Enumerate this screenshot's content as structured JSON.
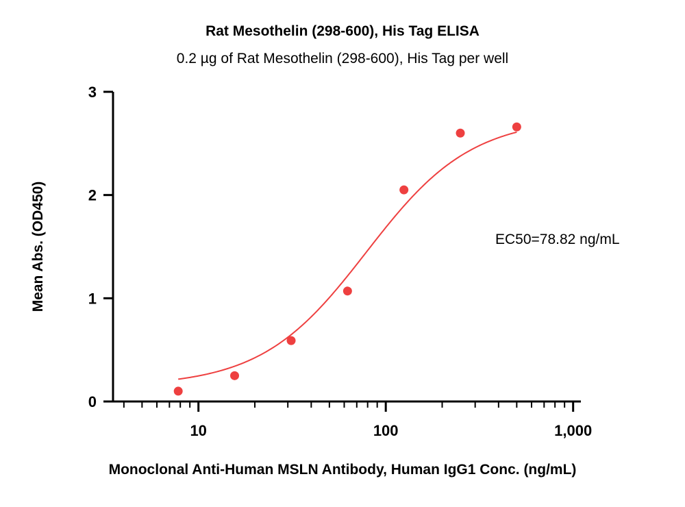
{
  "chart_data": {
    "type": "scatter",
    "title": "Rat Mesothelin (298-600), His Tag ELISA",
    "subtitle": "0.2 µg of Rat Mesothelin (298-600), His Tag per well",
    "xlabel": "Monoclonal Anti-Human MSLN Antibody, Human IgG1 Conc. (ng/mL)",
    "ylabel": "Mean Abs. (OD450)",
    "x_scale": "log",
    "xlim": [
      3.5,
      1100
    ],
    "ylim": [
      0,
      3
    ],
    "x_ticks": [
      10,
      100,
      1000
    ],
    "x_tick_labels": [
      "10",
      "100",
      "1,000"
    ],
    "y_ticks": [
      0,
      1,
      2,
      3
    ],
    "y_tick_labels": [
      "0",
      "1",
      "2",
      "3"
    ],
    "grid": false,
    "series": [
      {
        "x": [
          7.8,
          15.6,
          31.25,
          62.5,
          125,
          250,
          500
        ],
        "y": [
          0.1,
          0.25,
          0.59,
          1.07,
          2.05,
          2.6,
          2.66
        ],
        "color": "#ee4040",
        "fit_curve": "4PL",
        "fit_x_range": [
          7.8,
          500
        ]
      }
    ],
    "annotations": [
      "EC50=78.82 ng/mL"
    ]
  }
}
